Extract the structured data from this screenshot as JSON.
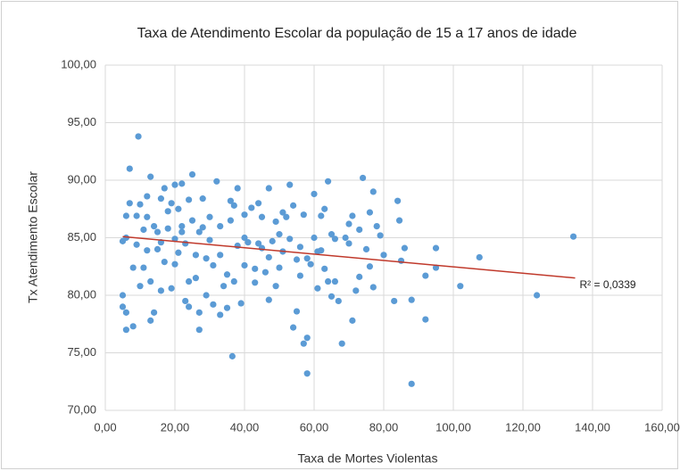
{
  "chart_data": {
    "type": "scatter",
    "title": "Taxa de Atendimento  Escolar da população de 15 a 17 anos de idade",
    "x_label": "Taxa de Mortes Violentas",
    "y_label": "Tx Atendimento  Escolar",
    "color": "#5b9bd5",
    "grid": true,
    "xlim": [
      0,
      160
    ],
    "ylim": [
      70,
      100
    ],
    "xticks": [
      {
        "value": 0,
        "label": "0,00"
      },
      {
        "value": 20,
        "label": "20,00"
      },
      {
        "value": 40,
        "label": "40,00"
      },
      {
        "value": 60,
        "label": "60,00"
      },
      {
        "value": 80,
        "label": "80,00"
      },
      {
        "value": 100,
        "label": "100,00"
      },
      {
        "value": 120,
        "label": "120,00"
      },
      {
        "value": 140,
        "label": "140,00"
      },
      {
        "value": 160,
        "label": "160,00"
      }
    ],
    "yticks": [
      {
        "value": 70,
        "label": "70,00"
      },
      {
        "value": 75,
        "label": "75,00"
      },
      {
        "value": 80,
        "label": "80,00"
      },
      {
        "value": 85,
        "label": "85,00"
      },
      {
        "value": 90,
        "label": "90,00"
      },
      {
        "value": 95,
        "label": "95,00"
      },
      {
        "value": 100,
        "label": "100,00"
      }
    ],
    "x": [
      9.5,
      134.5,
      124,
      88,
      58,
      36.5,
      107.5,
      102,
      95,
      95,
      92,
      92,
      88,
      86,
      84,
      84.5,
      85,
      83,
      80,
      78,
      77,
      76,
      75,
      76,
      77,
      74,
      73,
      71,
      72,
      70,
      71,
      68,
      69,
      66,
      67,
      65,
      64,
      63,
      62,
      61,
      60,
      59,
      60,
      58,
      57,
      56,
      55,
      54,
      53,
      52,
      50,
      51,
      50,
      49,
      48,
      47,
      46,
      45,
      44,
      44,
      43,
      42,
      40,
      40,
      39,
      38,
      37,
      36,
      35,
      34,
      33,
      32,
      31,
      30,
      29,
      28,
      27,
      27,
      26,
      25,
      24,
      24,
      23,
      22,
      21,
      20,
      20,
      19,
      18,
      17,
      16,
      16,
      15,
      14,
      13,
      13,
      12,
      12,
      11,
      10,
      10,
      9,
      8,
      8,
      7,
      7,
      6,
      6,
      6,
      5,
      5,
      5,
      6,
      18,
      22,
      25,
      28,
      30,
      33,
      14,
      15,
      19,
      21,
      23,
      26,
      29,
      31,
      35,
      37,
      40,
      43,
      45,
      47,
      53,
      55,
      57,
      62,
      63,
      66,
      12,
      11,
      9,
      17,
      20,
      24,
      27,
      33,
      49,
      51,
      54,
      56,
      58,
      61,
      64,
      65,
      70,
      73,
      79,
      47,
      41,
      38,
      36,
      13,
      16,
      22
    ],
    "values": [
      93.8,
      85.1,
      80,
      72.3,
      73.2,
      74.7,
      83.3,
      80.8,
      84.1,
      82.4,
      77.9,
      81.7,
      79.6,
      84.1,
      88.2,
      86.5,
      83,
      79.5,
      83.5,
      86,
      89,
      87.2,
      84,
      82.5,
      80.7,
      90.2,
      85.7,
      86.9,
      80.4,
      84.5,
      77.8,
      75.8,
      85,
      81.2,
      79.5,
      85.3,
      89.9,
      87.5,
      83.9,
      80.6,
      88.8,
      82.7,
      85,
      76.3,
      75.8,
      84.2,
      78.6,
      77.2,
      89.6,
      86.8,
      85.3,
      83.8,
      82.4,
      80.8,
      84.7,
      89.3,
      82,
      86.8,
      88,
      84.5,
      81.1,
      87.6,
      85,
      82.6,
      79.3,
      89.3,
      87.8,
      86.5,
      81.8,
      80.8,
      83.5,
      89.9,
      82.6,
      84.8,
      80,
      88.4,
      77,
      85.5,
      83.5,
      90.5,
      88.3,
      81.2,
      79.5,
      86,
      83.7,
      89.6,
      84.9,
      80.6,
      87.3,
      82.9,
      88.4,
      80.4,
      85.5,
      78.5,
      90.3,
      77.8,
      86.8,
      83.9,
      82.4,
      87.9,
      80.8,
      84.4,
      82.4,
      77.3,
      91,
      88,
      86.9,
      85,
      77,
      84.7,
      80,
      79,
      78.5,
      85.8,
      85.5,
      86.5,
      85.9,
      86.8,
      86,
      86,
      84,
      88,
      87.5,
      84.5,
      81.5,
      83.2,
      79.2,
      78.9,
      81.2,
      87,
      82.3,
      84.1,
      83.3,
      84.9,
      83.1,
      87,
      86.9,
      82.3,
      84.9,
      88.6,
      85.7,
      86.9,
      89.3,
      82.7,
      79,
      78.5,
      78.3,
      86.4,
      87.2,
      87.8,
      81.7,
      83.2,
      83.8,
      81.2,
      79.9,
      86.2,
      81.6,
      85.2,
      79.6,
      84.6,
      84.3,
      88.2,
      81.2,
      84.6,
      89.7
    ],
    "trendline": {
      "color": "#c0392b",
      "x": [
        5,
        135
      ],
      "y": [
        85.1,
        81.5
      ],
      "label": "R² = 0,0339"
    }
  }
}
